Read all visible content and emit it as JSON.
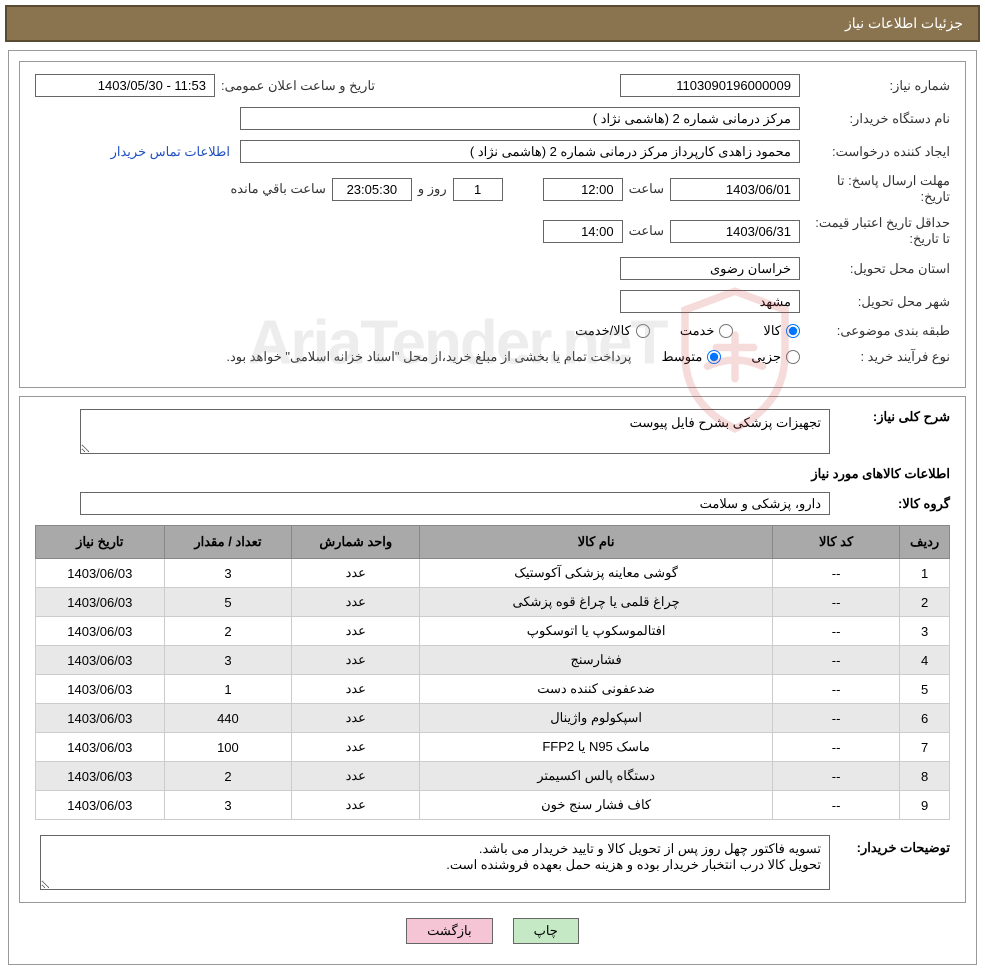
{
  "header": {
    "title": "جزئیات اطلاعات نیاز"
  },
  "form": {
    "need_number_label": "شماره نیاز:",
    "need_number": "1103090196000009",
    "announce_label": "تاریخ و ساعت اعلان عمومی:",
    "announce_value": "11:53 - 1403/05/30",
    "buyer_org_label": "نام دستگاه خریدار:",
    "buyer_org": "مرکز درمانی شماره 2 (هاشمی نژاد )",
    "requester_label": "ایجاد کننده درخواست:",
    "requester": "محمود زاهدی کارپرداز مرکز درمانی شماره 2 (هاشمی نژاد )",
    "contact_link": "اطلاعات تماس خریدار",
    "deadline_label": "مهلت ارسال پاسخ: تا تاریخ:",
    "deadline_date": "1403/06/01",
    "time_label": "ساعت",
    "deadline_time": "12:00",
    "days_value": "1",
    "days_label": "روز و",
    "countdown": "23:05:30",
    "remaining_label": "ساعت باقي مانده",
    "validity_label": "حداقل تاریخ اعتبار قیمت: تا تاریخ:",
    "validity_date": "1403/06/31",
    "validity_time": "14:00",
    "province_label": "استان محل تحویل:",
    "province": "خراسان رضوی",
    "city_label": "شهر محل تحویل:",
    "city": "مشهد",
    "category_label": "طبقه بندی موضوعی:",
    "cat_goods": "کالا",
    "cat_service": "خدمت",
    "cat_goods_service": "کالا/خدمت",
    "process_label": "نوع فرآیند خرید :",
    "proc_partial": "جزیی",
    "proc_medium": "متوسط",
    "payment_note": "پرداخت تمام یا بخشی از مبلغ خرید،از محل \"اسناد خزانه اسلامی\" خواهد بود."
  },
  "detail": {
    "summary_label": "شرح کلی نیاز:",
    "summary_text": "تجهیزات پزشکی بشرح فایل پیوست",
    "goods_info_title": "اطلاعات کالاهای مورد نیاز",
    "group_label": "گروه کالا:",
    "group_value": "دارو، پزشکی و سلامت",
    "buyer_note_label": "توضیحات خریدار:",
    "buyer_note_text": "تسویه فاکتور چهل روز پس از تحویل کالا و تایید خریدار می باشد.\nتحویل کالا درب انتخبار خریدار بوده و هزینه حمل بعهده فروشنده است."
  },
  "table": {
    "headers": {
      "idx": "ردیف",
      "code": "کد کالا",
      "name": "نام کالا",
      "unit": "واحد شمارش",
      "qty": "تعداد / مقدار",
      "date": "تاریخ نیاز"
    },
    "rows": [
      {
        "idx": "1",
        "code": "--",
        "name": "گوشی معاینه پزشکی آکوستیک",
        "unit": "عدد",
        "qty": "3",
        "date": "1403/06/03"
      },
      {
        "idx": "2",
        "code": "--",
        "name": "چراغ قلمی یا چراغ قوه پزشکی",
        "unit": "عدد",
        "qty": "5",
        "date": "1403/06/03"
      },
      {
        "idx": "3",
        "code": "--",
        "name": "افتالموسکوپ یا اتوسکوپ",
        "unit": "عدد",
        "qty": "2",
        "date": "1403/06/03"
      },
      {
        "idx": "4",
        "code": "--",
        "name": "فشارسنج",
        "unit": "عدد",
        "qty": "3",
        "date": "1403/06/03"
      },
      {
        "idx": "5",
        "code": "--",
        "name": "ضدعفونی کننده دست",
        "unit": "عدد",
        "qty": "1",
        "date": "1403/06/03"
      },
      {
        "idx": "6",
        "code": "--",
        "name": "اسپکولوم واژینال",
        "unit": "عدد",
        "qty": "440",
        "date": "1403/06/03"
      },
      {
        "idx": "7",
        "code": "--",
        "name": "ماسک N95 یا FFP2",
        "unit": "عدد",
        "qty": "100",
        "date": "1403/06/03"
      },
      {
        "idx": "8",
        "code": "--",
        "name": "دستگاه پالس اکسیمتر",
        "unit": "عدد",
        "qty": "2",
        "date": "1403/06/03"
      },
      {
        "idx": "9",
        "code": "--",
        "name": "کاف فشار سنج خون",
        "unit": "عدد",
        "qty": "3",
        "date": "1403/06/03"
      }
    ]
  },
  "buttons": {
    "print": "چاپ",
    "back": "بازگشت"
  },
  "colors": {
    "header_bg": "#8a7450",
    "header_border": "#5a4a30",
    "table_header_bg": "#a9a9a9",
    "row_even_bg": "#e8e8e8",
    "btn_print_bg": "#c5e8c5",
    "btn_back_bg": "#f5c5d5",
    "link_color": "#2050c0"
  }
}
